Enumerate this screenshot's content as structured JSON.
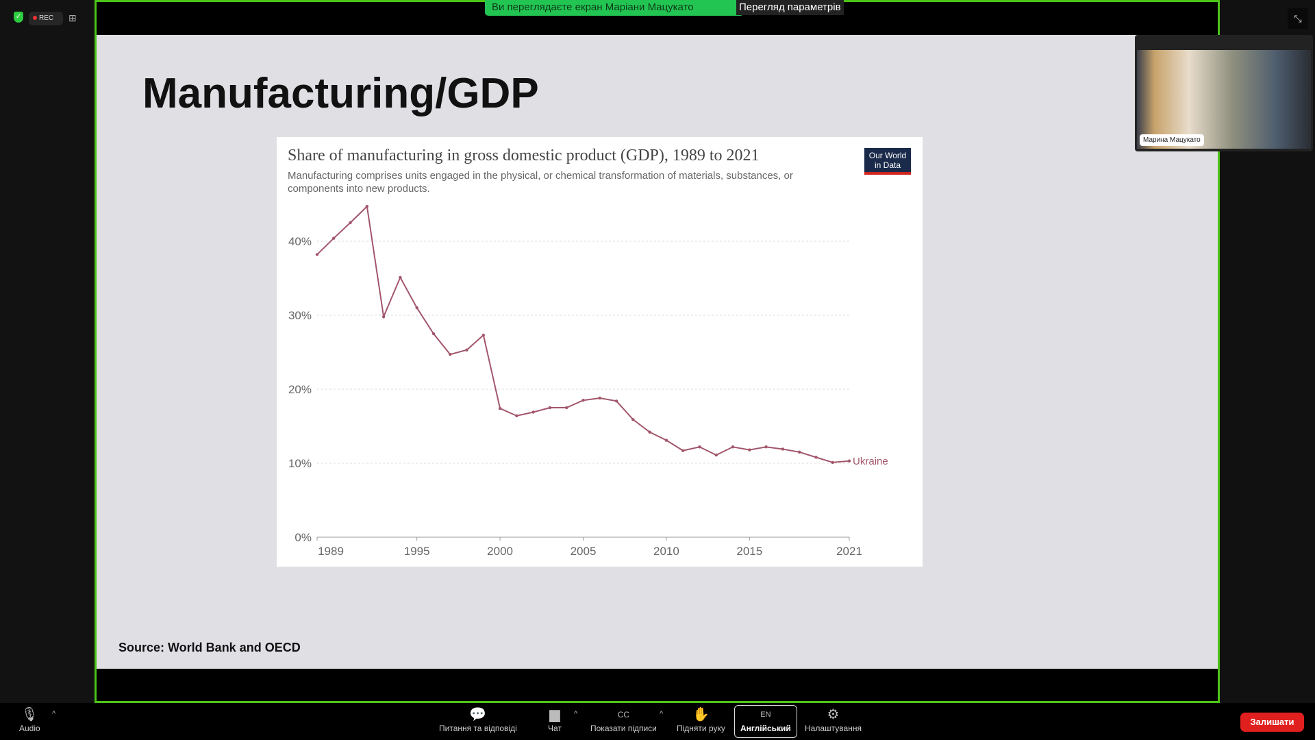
{
  "status": {
    "rec_label": "REC"
  },
  "banner": {
    "viewing_text": "Ви переглядаєте екран Маріани Мацукато",
    "options_label": "Перегляд параметрів"
  },
  "slide": {
    "title": "Manufacturing/GDP",
    "source": "Source: World Bank and OECD"
  },
  "chart_data": {
    "type": "line",
    "title": "Share of manufacturing in gross domestic product (GDP), 1989 to 2021",
    "subtitle": "Manufacturing comprises units engaged in the physical, or chemical transformation of materials, substances, or components into new products.",
    "logo": "Our World in Data",
    "xlim": [
      1989,
      2021
    ],
    "ylim": [
      0,
      45
    ],
    "x_ticks": [
      "1989",
      "1995",
      "2000",
      "2005",
      "2010",
      "2015",
      "2021"
    ],
    "y_ticks": [
      "0%",
      "10%",
      "20%",
      "30%",
      "40%"
    ],
    "grid": true,
    "series": [
      {
        "name": "Ukraine",
        "color": "#a2566b",
        "x": [
          1989,
          1990,
          1991,
          1992,
          1993,
          1994,
          1995,
          1996,
          1997,
          1998,
          1999,
          2000,
          2001,
          2002,
          2003,
          2004,
          2005,
          2006,
          2007,
          2008,
          2009,
          2010,
          2011,
          2012,
          2013,
          2014,
          2015,
          2016,
          2017,
          2018,
          2019,
          2020,
          2021
        ],
        "y": [
          38.2,
          40.4,
          42.5,
          44.7,
          29.8,
          35.1,
          31.0,
          27.5,
          24.7,
          25.3,
          27.3,
          17.4,
          16.4,
          16.9,
          17.5,
          17.5,
          18.5,
          18.8,
          18.4,
          15.9,
          14.2,
          13.1,
          11.7,
          12.2,
          11.1,
          12.2,
          11.8,
          12.2,
          11.9,
          11.5,
          10.8,
          10.1,
          10.3
        ]
      }
    ]
  },
  "video": {
    "participant_name": "Марина Мацукато"
  },
  "toolbar": {
    "audio": "Audio",
    "qa": "Питання та відповіді",
    "chat": "Чат",
    "captions": "Показати підписи",
    "raise_hand": "Підняти руку",
    "language": "Англійський",
    "language_code": "EN",
    "settings": "Налаштування",
    "leave": "Залишати"
  }
}
